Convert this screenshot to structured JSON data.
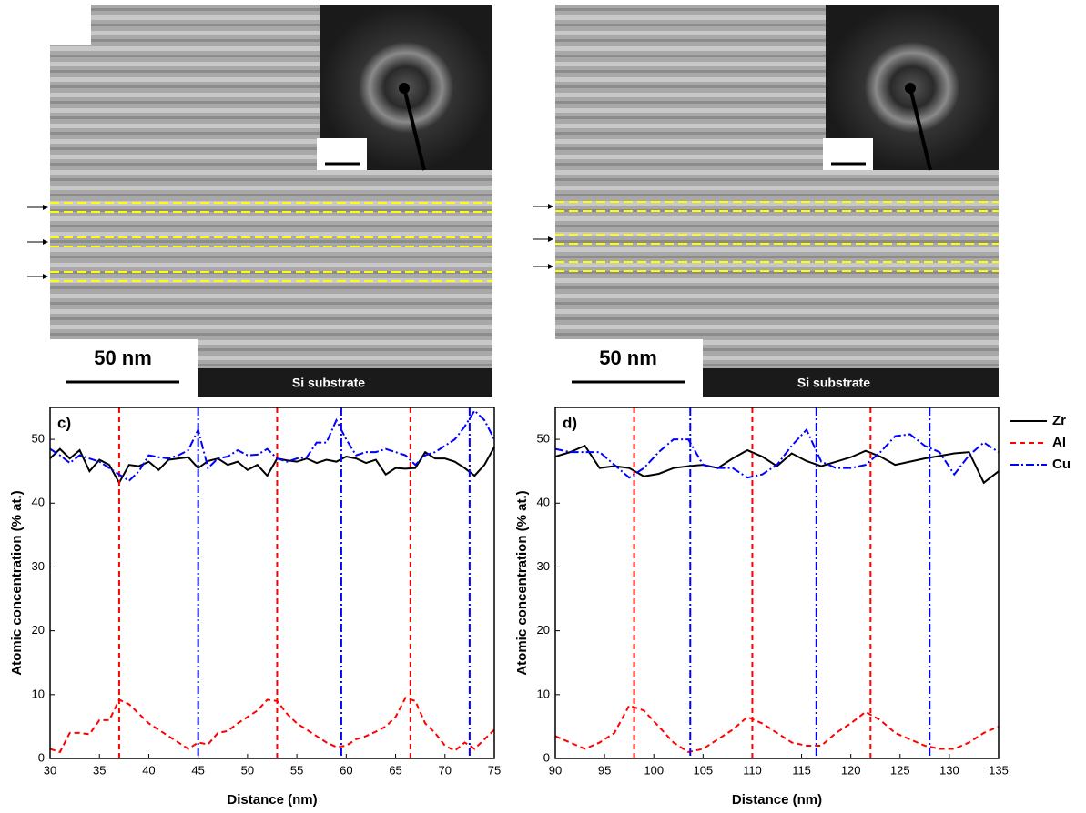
{
  "images": [
    {
      "scale_label": "50 nm",
      "substrate_label": "Si substrate"
    },
    {
      "scale_label": "50 nm",
      "substrate_label": "Si substrate"
    }
  ],
  "chart_data": [
    {
      "type": "line",
      "panel_label": "c)",
      "x_label": "Distance (nm)",
      "y_label": "Atomic concentration (% at.)",
      "xlim": [
        30,
        75
      ],
      "xticks": [
        30,
        35,
        40,
        45,
        50,
        55,
        60,
        65,
        70,
        75
      ],
      "ylim": [
        0,
        55
      ],
      "yticks": [
        0,
        10,
        20,
        30,
        40,
        50
      ],
      "x": [
        30,
        31,
        32,
        33,
        34,
        35,
        36,
        37,
        38,
        39,
        40,
        41,
        42,
        43,
        44,
        45,
        46,
        47,
        48,
        49,
        50,
        51,
        52,
        53,
        54,
        55,
        56,
        57,
        58,
        59,
        60,
        61,
        62,
        63,
        64,
        65,
        66,
        67,
        68,
        69,
        70,
        71,
        72,
        73,
        74,
        75
      ],
      "series": [
        {
          "color": "#000000",
          "dash": "solid",
          "values": [
            47,
            48.5,
            47,
            48.3,
            45,
            46.8,
            46,
            43.2,
            46,
            45.8,
            46.5,
            45.2,
            46.8,
            47,
            47.2,
            45.5,
            46.6,
            47,
            46,
            46.5,
            45.2,
            46,
            44.3,
            47,
            46.7,
            46.5,
            47,
            46.3,
            46.8,
            46.5,
            47.3,
            47,
            46.3,
            46.8,
            44.5,
            45.5,
            45.4,
            45.5,
            48,
            47,
            47,
            46.5,
            45.5,
            44.3,
            46,
            48.8
          ]
        },
        {
          "color": "#ff0000",
          "dash": "dashed",
          "peaks": [
            37,
            53,
            66.5
          ],
          "values": [
            1.5,
            1,
            4,
            4,
            3.8,
            6,
            6,
            9.2,
            8.5,
            7,
            5.5,
            4.5,
            3.5,
            2.5,
            1.5,
            2.5,
            2.2,
            4,
            4.3,
            5.5,
            6.5,
            7.5,
            9.2,
            9,
            7,
            5.5,
            4.5,
            3.5,
            2.5,
            1.8,
            2,
            3,
            3.5,
            4.2,
            5,
            6.5,
            9.5,
            9,
            5.5,
            4,
            2,
            1.2,
            2.5,
            1.5,
            3,
            4.5
          ]
        },
        {
          "color": "#0000ff",
          "dash": "dashdot",
          "peaks": [
            45,
            59.5,
            72.5
          ],
          "values": [
            48.5,
            47.5,
            46.3,
            47.5,
            47,
            46.5,
            45.5,
            44.5,
            43.5,
            45,
            47.5,
            47.2,
            47,
            47.5,
            48.3,
            51.5,
            45.5,
            47,
            47.3,
            48.3,
            47.5,
            47.6,
            48.5,
            47,
            46.5,
            47,
            47.2,
            49.5,
            49.5,
            53,
            50,
            47.5,
            48,
            48,
            48.5,
            48,
            47.5,
            46,
            47.5,
            48,
            49,
            50,
            52,
            54.5,
            53,
            50
          ]
        }
      ]
    },
    {
      "type": "line",
      "panel_label": "d)",
      "x_label": "Distance (nm)",
      "y_label": "Atomic concentration (% at.)",
      "xlim": [
        90,
        135
      ],
      "xticks": [
        90,
        95,
        100,
        105,
        110,
        115,
        120,
        125,
        130,
        135
      ],
      "ylim": [
        0,
        55
      ],
      "yticks": [
        0,
        10,
        20,
        30,
        40,
        50
      ],
      "x": [
        90,
        91.5,
        93,
        94.5,
        96,
        97.5,
        99,
        100.5,
        102,
        103.5,
        105,
        106.5,
        108,
        109.5,
        111,
        112.5,
        114,
        115.5,
        117,
        118.5,
        120,
        121.5,
        123,
        124.5,
        126,
        127.5,
        129,
        130.5,
        132,
        133.5,
        135
      ],
      "series": [
        {
          "name": "Zr",
          "color": "#000000",
          "dash": "solid",
          "values": [
            47.3,
            48,
            49,
            45.5,
            45.8,
            45.5,
            44.2,
            44.6,
            45.5,
            45.8,
            46,
            45.5,
            47,
            48.3,
            47.3,
            45.8,
            47.8,
            46.6,
            45.8,
            46.5,
            47.2,
            48.2,
            47.3,
            46,
            46.5,
            47,
            47.4,
            47.8,
            48,
            43.2,
            45
          ]
        },
        {
          "name": "Al",
          "color": "#ff0000",
          "dash": "dashed",
          "peaks": [
            98,
            110,
            122
          ],
          "values": [
            3.5,
            2.5,
            1.5,
            2.5,
            4,
            8.3,
            7.5,
            5,
            2.5,
            1,
            1.5,
            3,
            4.5,
            6.5,
            5.5,
            4,
            2.5,
            2,
            2,
            4,
            5.5,
            7.3,
            6,
            4,
            3,
            2,
            1.5,
            1.5,
            2.5,
            4,
            5
          ]
        },
        {
          "name": "Cu",
          "color": "#0000ff",
          "dash": "dashdot",
          "peaks": [
            103.7,
            116.5,
            128
          ],
          "values": [
            48.5,
            48,
            48,
            48,
            46,
            44,
            45.5,
            48,
            50,
            50,
            46,
            45.5,
            45.5,
            44,
            44.5,
            46,
            49,
            51.5,
            46.5,
            45.5,
            45.5,
            46,
            48,
            50.5,
            50.8,
            49,
            48,
            44.5,
            47.5,
            49.5,
            48
          ]
        }
      ]
    }
  ]
}
